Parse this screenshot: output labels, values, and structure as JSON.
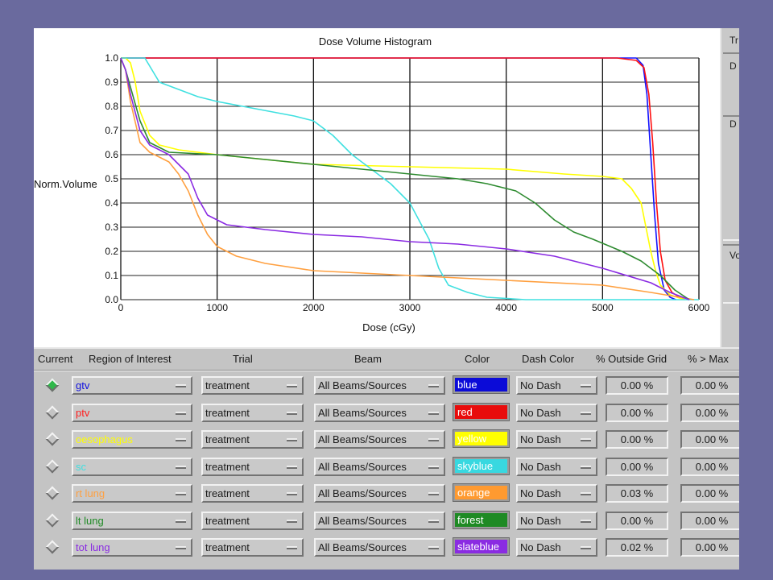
{
  "chart_data": {
    "type": "line",
    "title": "Dose Volume Histogram",
    "xlabel": "Dose (cGy)",
    "ylabel": "Norm.Volume",
    "xlim": [
      0,
      6000
    ],
    "ylim": [
      0.0,
      1.0
    ],
    "x_ticks": [
      "0",
      "1000",
      "2000",
      "3000",
      "4000",
      "5000",
      "6000"
    ],
    "y_ticks": [
      "0.0",
      "0.1",
      "0.2",
      "0.3",
      "0.4",
      "0.5",
      "0.6",
      "0.7",
      "0.8",
      "0.9",
      "1.0"
    ],
    "grid": true,
    "series": [
      {
        "name": "gtv",
        "color": "#1010ff",
        "points": [
          [
            0,
            1.0
          ],
          [
            5150,
            1.0
          ],
          [
            5350,
            1.0
          ],
          [
            5420,
            0.97
          ],
          [
            5460,
            0.85
          ],
          [
            5500,
            0.6
          ],
          [
            5540,
            0.35
          ],
          [
            5580,
            0.15
          ],
          [
            5640,
            0.04
          ],
          [
            5700,
            0.01
          ],
          [
            5760,
            0.0
          ]
        ]
      },
      {
        "name": "ptv",
        "color": "#ff1010",
        "points": [
          [
            0,
            1.0
          ],
          [
            5150,
            1.0
          ],
          [
            5350,
            0.99
          ],
          [
            5430,
            0.96
          ],
          [
            5480,
            0.85
          ],
          [
            5520,
            0.65
          ],
          [
            5560,
            0.4
          ],
          [
            5600,
            0.2
          ],
          [
            5650,
            0.08
          ],
          [
            5720,
            0.03
          ],
          [
            5800,
            0.01
          ],
          [
            5850,
            0.0
          ]
        ]
      },
      {
        "name": "oesophagus",
        "color": "#ffff00",
        "points": [
          [
            0,
            1.0
          ],
          [
            50,
            1.0
          ],
          [
            100,
            0.98
          ],
          [
            150,
            0.9
          ],
          [
            200,
            0.78
          ],
          [
            300,
            0.68
          ],
          [
            400,
            0.64
          ],
          [
            600,
            0.62
          ],
          [
            1000,
            0.6
          ],
          [
            2000,
            0.56
          ],
          [
            3000,
            0.55
          ],
          [
            4000,
            0.54
          ],
          [
            4600,
            0.52
          ],
          [
            5000,
            0.51
          ],
          [
            5200,
            0.5
          ],
          [
            5300,
            0.46
          ],
          [
            5400,
            0.4
          ],
          [
            5450,
            0.3
          ],
          [
            5500,
            0.2
          ],
          [
            5550,
            0.12
          ],
          [
            5600,
            0.06
          ],
          [
            5700,
            0.02
          ],
          [
            5850,
            0.0
          ]
        ]
      },
      {
        "name": "sc",
        "color": "#40e0e0",
        "points": [
          [
            0,
            1.0
          ],
          [
            250,
            1.0
          ],
          [
            400,
            0.9
          ],
          [
            800,
            0.84
          ],
          [
            1000,
            0.82
          ],
          [
            1400,
            0.79
          ],
          [
            1800,
            0.76
          ],
          [
            2000,
            0.74
          ],
          [
            2200,
            0.68
          ],
          [
            2400,
            0.6
          ],
          [
            2800,
            0.48
          ],
          [
            3000,
            0.4
          ],
          [
            3200,
            0.25
          ],
          [
            3300,
            0.13
          ],
          [
            3400,
            0.06
          ],
          [
            3600,
            0.03
          ],
          [
            3800,
            0.01
          ],
          [
            4200,
            0.0
          ],
          [
            6000,
            0.0
          ]
        ]
      },
      {
        "name": "rt lung",
        "color": "#ffa040",
        "points": [
          [
            0,
            1.0
          ],
          [
            50,
            0.95
          ],
          [
            100,
            0.82
          ],
          [
            200,
            0.65
          ],
          [
            300,
            0.61
          ],
          [
            500,
            0.57
          ],
          [
            600,
            0.52
          ],
          [
            700,
            0.45
          ],
          [
            800,
            0.35
          ],
          [
            900,
            0.27
          ],
          [
            1000,
            0.22
          ],
          [
            1200,
            0.18
          ],
          [
            1500,
            0.15
          ],
          [
            2000,
            0.12
          ],
          [
            3000,
            0.1
          ],
          [
            4000,
            0.08
          ],
          [
            5000,
            0.06
          ],
          [
            5500,
            0.03
          ],
          [
            5800,
            0.01
          ],
          [
            5950,
            0.0
          ]
        ]
      },
      {
        "name": "lt lung",
        "color": "#2e8b30",
        "points": [
          [
            0,
            1.0
          ],
          [
            50,
            0.95
          ],
          [
            100,
            0.88
          ],
          [
            200,
            0.74
          ],
          [
            300,
            0.65
          ],
          [
            500,
            0.61
          ],
          [
            1000,
            0.6
          ],
          [
            1500,
            0.58
          ],
          [
            2000,
            0.56
          ],
          [
            3000,
            0.52
          ],
          [
            3500,
            0.5
          ],
          [
            3800,
            0.48
          ],
          [
            4100,
            0.45
          ],
          [
            4300,
            0.4
          ],
          [
            4500,
            0.33
          ],
          [
            4700,
            0.28
          ],
          [
            4900,
            0.25
          ],
          [
            5200,
            0.2
          ],
          [
            5400,
            0.16
          ],
          [
            5600,
            0.1
          ],
          [
            5750,
            0.04
          ],
          [
            5900,
            0.0
          ]
        ]
      },
      {
        "name": "tot lung",
        "color": "#8a2be2",
        "points": [
          [
            0,
            1.0
          ],
          [
            50,
            0.95
          ],
          [
            100,
            0.85
          ],
          [
            200,
            0.7
          ],
          [
            300,
            0.64
          ],
          [
            500,
            0.6
          ],
          [
            700,
            0.52
          ],
          [
            800,
            0.42
          ],
          [
            900,
            0.35
          ],
          [
            1100,
            0.31
          ],
          [
            1500,
            0.29
          ],
          [
            2000,
            0.27
          ],
          [
            2500,
            0.26
          ],
          [
            3000,
            0.24
          ],
          [
            3500,
            0.23
          ],
          [
            4000,
            0.21
          ],
          [
            4500,
            0.18
          ],
          [
            5000,
            0.13
          ],
          [
            5500,
            0.07
          ],
          [
            5700,
            0.03
          ],
          [
            5900,
            0.0
          ]
        ]
      }
    ]
  },
  "side_panel": {
    "labels": [
      "Tr",
      "D",
      "D",
      "Vo"
    ]
  },
  "table": {
    "headers": {
      "current": "Current",
      "roi": "Region of Interest",
      "trial": "Trial",
      "beam": "Beam",
      "color": "Color",
      "dash": "Dash Color",
      "outside": "% Outside Grid",
      "max": "% > Max"
    },
    "rows": [
      {
        "roi": "gtv",
        "roi_color": "#1010e0",
        "trial": "treatment",
        "beam": "All Beams/Sources",
        "color": "blue",
        "swatch": "#0b0bd8",
        "dash": "No Dash",
        "outside": "0.00 %",
        "max": "0.00 %",
        "current": true
      },
      {
        "roi": "ptv",
        "roi_color": "#ff2020",
        "trial": "treatment",
        "beam": "All Beams/Sources",
        "color": "red",
        "swatch": "#e80c0c",
        "dash": "No Dash",
        "outside": "0.00 %",
        "max": "0.00 %",
        "current": false
      },
      {
        "roi": "oesophagus",
        "roi_color": "#ffff00",
        "trial": "treatment",
        "beam": "All Beams/Sources",
        "color": "yellow",
        "swatch": "#ffff00",
        "dash": "No Dash",
        "outside": "0.00 %",
        "max": "0.00 %",
        "current": false
      },
      {
        "roi": "sc",
        "roi_color": "#40e0e0",
        "trial": "treatment",
        "beam": "All Beams/Sources",
        "color": "skyblue",
        "swatch": "#38d8e0",
        "dash": "No Dash",
        "outside": "0.00 %",
        "max": "0.00 %",
        "current": false
      },
      {
        "roi": "rt lung",
        "roi_color": "#ffa040",
        "trial": "treatment",
        "beam": "All Beams/Sources",
        "color": "orange",
        "swatch": "#ff9a30",
        "dash": "No Dash",
        "outside": "0.03 %",
        "max": "0.00 %",
        "current": false
      },
      {
        "roi": "lt lung",
        "roi_color": "#1e8a24",
        "trial": "treatment",
        "beam": "All Beams/Sources",
        "color": "forest",
        "swatch": "#1e8a24",
        "dash": "No Dash",
        "outside": "0.00 %",
        "max": "0.00 %",
        "current": false
      },
      {
        "roi": "tot lung",
        "roi_color": "#8a2be2",
        "trial": "treatment",
        "beam": "All Beams/Sources",
        "color": "slateblue",
        "swatch": "#8a2be2",
        "dash": "No Dash",
        "outside": "0.02 %",
        "max": "0.00 %",
        "current": false
      }
    ]
  }
}
